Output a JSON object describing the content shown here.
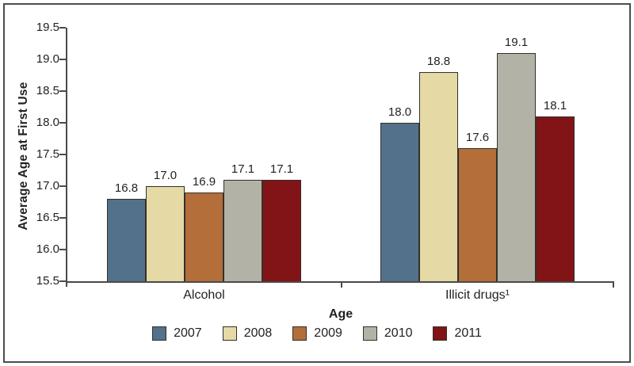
{
  "chart_data": {
    "type": "bar",
    "title": "",
    "xlabel": "Age",
    "ylabel": "Average Age at First Use",
    "categories": [
      "Alcohol",
      "Illicit drugs¹"
    ],
    "series": [
      {
        "name": "2007",
        "color": "#53718A",
        "values": [
          16.8,
          18.0
        ]
      },
      {
        "name": "2008",
        "color": "#E5D9A5",
        "values": [
          17.0,
          18.8
        ]
      },
      {
        "name": "2009",
        "color": "#B46E3A",
        "values": [
          16.9,
          17.6
        ]
      },
      {
        "name": "2010",
        "color": "#B2B3A6",
        "values": [
          17.1,
          19.1
        ]
      },
      {
        "name": "2011",
        "color": "#821417",
        "values": [
          17.1,
          18.1
        ]
      }
    ],
    "ylim": [
      15.5,
      19.5
    ],
    "ytick_step": 0.5,
    "yticks": [
      "19.5",
      "19.0",
      "18.5",
      "18.0",
      "17.5",
      "17.0",
      "16.5",
      "16.0",
      "15.5"
    ],
    "value_label_format": "one_decimal",
    "legend_position": "bottom",
    "grid": false
  },
  "style": {
    "text_color": "#231F20",
    "axis_color": "#4A4A4A",
    "bar_outline_color": "#33302C",
    "frame_border_color": "#4D4D4D",
    "background": "#FFFFFF"
  }
}
